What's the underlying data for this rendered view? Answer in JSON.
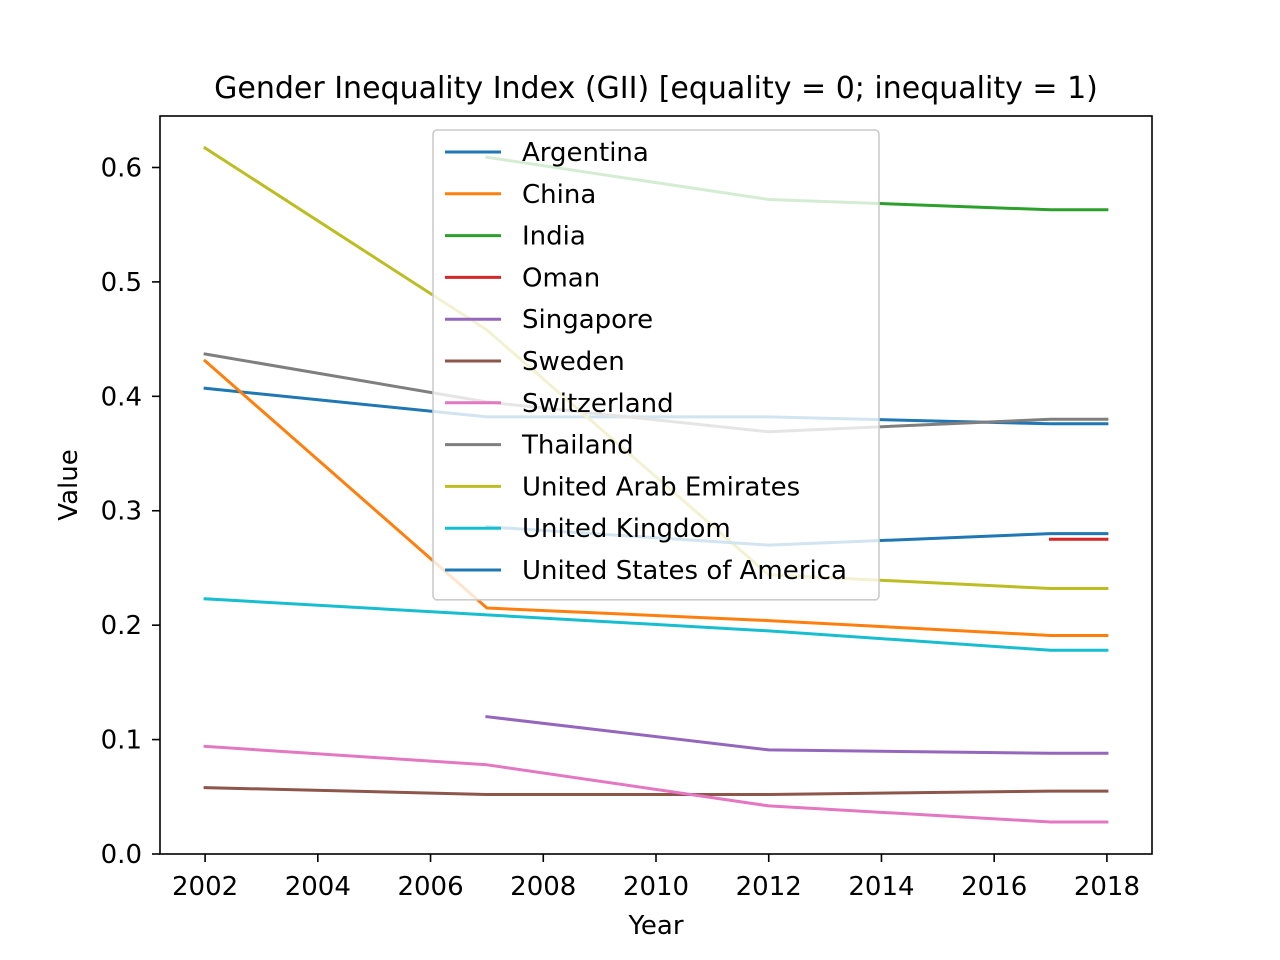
{
  "chart_data": {
    "type": "line",
    "title": "Gender Inequality Index (GII) [equality = 0; inequality = 1)",
    "xlabel": "Year",
    "ylabel": "Value",
    "xlim": [
      2001.2,
      2018.8
    ],
    "ylim": [
      0.0,
      0.645
    ],
    "xticks": [
      "2002",
      "2004",
      "2006",
      "2008",
      "2010",
      "2012",
      "2014",
      "2016",
      "2018"
    ],
    "yticks": [
      "0.0",
      "0.1",
      "0.2",
      "0.3",
      "0.4",
      "0.5",
      "0.6"
    ],
    "grid": false,
    "legend_position": "top-center",
    "series": [
      {
        "name": "Argentina",
        "color": "#1f77b4",
        "points": [
          [
            2002,
            0.407
          ],
          [
            2007,
            0.382
          ],
          [
            2012,
            0.382
          ],
          [
            2017,
            0.376
          ],
          [
            2018,
            0.376
          ]
        ]
      },
      {
        "name": "China",
        "color": "#ff7f0e",
        "points": [
          [
            2002,
            0.431
          ],
          [
            2007,
            0.215
          ],
          [
            2012,
            0.204
          ],
          [
            2017,
            0.191
          ],
          [
            2018,
            0.191
          ]
        ]
      },
      {
        "name": "India",
        "color": "#2ca02c",
        "points": [
          [
            2007,
            0.609
          ],
          [
            2012,
            0.572
          ],
          [
            2017,
            0.563
          ],
          [
            2018,
            0.563
          ]
        ]
      },
      {
        "name": "Oman",
        "color": "#d62728",
        "points": [
          [
            2017,
            0.275
          ],
          [
            2018,
            0.275
          ]
        ]
      },
      {
        "name": "Singapore",
        "color": "#9467bd",
        "points": [
          [
            2007,
            0.12
          ],
          [
            2012,
            0.091
          ],
          [
            2017,
            0.088
          ],
          [
            2018,
            0.088
          ]
        ]
      },
      {
        "name": "Sweden",
        "color": "#8c564b",
        "points": [
          [
            2002,
            0.058
          ],
          [
            2007,
            0.052
          ],
          [
            2012,
            0.052
          ],
          [
            2017,
            0.055
          ],
          [
            2018,
            0.055
          ]
        ]
      },
      {
        "name": "Switzerland",
        "color": "#e377c2",
        "points": [
          [
            2002,
            0.094
          ],
          [
            2007,
            0.078
          ],
          [
            2012,
            0.042
          ],
          [
            2017,
            0.028
          ],
          [
            2018,
            0.028
          ]
        ]
      },
      {
        "name": "Thailand",
        "color": "#7f7f7f",
        "points": [
          [
            2002,
            0.437
          ],
          [
            2007,
            0.395
          ],
          [
            2012,
            0.369
          ],
          [
            2017,
            0.38
          ],
          [
            2018,
            0.38
          ]
        ]
      },
      {
        "name": "United Arab Emirates",
        "color": "#bcbd22",
        "points": [
          [
            2002,
            0.617
          ],
          [
            2007,
            0.458
          ],
          [
            2012,
            0.244
          ],
          [
            2017,
            0.232
          ],
          [
            2018,
            0.232
          ]
        ]
      },
      {
        "name": "United Kingdom",
        "color": "#17becf",
        "points": [
          [
            2002,
            0.223
          ],
          [
            2007,
            0.209
          ],
          [
            2012,
            0.195
          ],
          [
            2017,
            0.178
          ],
          [
            2018,
            0.178
          ]
        ]
      },
      {
        "name": "United States of America",
        "color": "#1f77b4",
        "points": [
          [
            2007,
            0.286
          ],
          [
            2012,
            0.27
          ],
          [
            2017,
            0.28
          ],
          [
            2018,
            0.28
          ]
        ]
      }
    ]
  }
}
